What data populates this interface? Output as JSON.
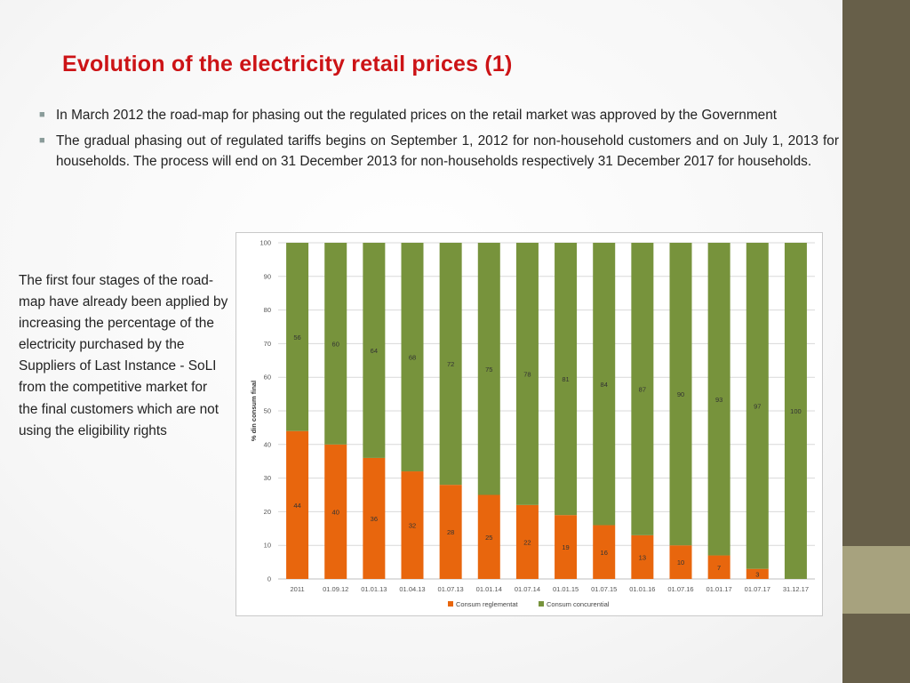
{
  "slide": {
    "title": "Evolution of the electricity retail prices (1)",
    "bullets": [
      {
        "text": "In March 2012 the road-map for phasing out the regulated prices on the retail market was approved by the Government"
      },
      {
        "text": "The gradual phasing out of regulated tariffs begins on September 1, 2012 for non-household customers and on July 1, 2013 for households. The process will end on 31 December 2013 for non-households respectively 31 December 2017 for households."
      }
    ],
    "bullet_icon": "square-bullet-icon",
    "side_text": "The first four stages of the road-map have already been applied by increasing the percentage of the electricity purchased by the Suppliers of Last Instance - SoLI from the competitive market for the final customers which are not using the eligibility rights"
  },
  "theme": {
    "title_color": "#cc1316",
    "sidebar_color": "#675f49",
    "sidebar_accent_color": "#a7a27e"
  },
  "chart_data": {
    "type": "bar",
    "stacked": true,
    "categories": [
      "2011",
      "01.09.12",
      "01.01.13",
      "01.04.13",
      "01.07.13",
      "01.01.14",
      "01.07.14",
      "01.01.15",
      "01.07.15",
      "01.01.16",
      "01.07.16",
      "01.01.17",
      "01.07.17",
      "31.12.17"
    ],
    "series": [
      {
        "name": "Consum reglementat",
        "color": "#e8660d",
        "values": [
          44,
          40,
          36,
          32,
          28,
          25,
          22,
          19,
          16,
          13,
          10,
          7,
          3,
          0
        ],
        "labels": [
          "44",
          "40",
          "36",
          "32",
          "28",
          "25",
          "22",
          "19",
          "16",
          "13",
          "10",
          "7",
          "3",
          ""
        ]
      },
      {
        "name": "Consum concurential",
        "color": "#77933c",
        "values": [
          56,
          60,
          64,
          68,
          72,
          75,
          78,
          81,
          84,
          87,
          90,
          93,
          97,
          100
        ],
        "labels": [
          "56",
          "60",
          "64",
          "68",
          "72",
          "75",
          "78",
          "81",
          "84",
          "87",
          "90",
          "93",
          "97",
          "100"
        ]
      }
    ],
    "ylabel": "% din consum final",
    "xlabel": "",
    "ylim": [
      0,
      100
    ],
    "yticks": [
      0,
      10,
      20,
      30,
      40,
      50,
      60,
      70,
      80,
      90,
      100
    ],
    "grid": true,
    "legend": "bottom"
  }
}
